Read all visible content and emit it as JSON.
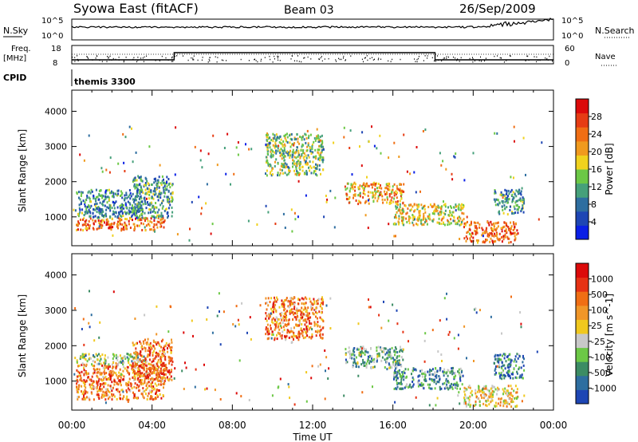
{
  "header": {
    "title": "Syowa East (fitACF)",
    "beam": "Beam 03",
    "date": "26/Sep/2009"
  },
  "status_panel": {
    "nsky_label": "N.Sky",
    "nsky_ticks": [
      "10^5",
      "10^0"
    ],
    "nsearch_label": "N.Search",
    "nsearch_ticks": [
      "10^5",
      "10^0"
    ],
    "freq_label_1": "Freq.",
    "freq_label_2": "[MHz]",
    "freq_ticks": [
      "18",
      "8"
    ],
    "nave_label": "Nave",
    "nave_ticks": [
      "60",
      "0"
    ],
    "cpid_label": "CPID",
    "cpid_value": "themis 3300"
  },
  "colors": {
    "power_scale": [
      "#0a1fe6",
      "#1e46b4",
      "#2e6ea0",
      "#46a07a",
      "#6cc846",
      "#f0d21e",
      "#f09a1e",
      "#f06e14",
      "#e63c14",
      "#dc0a0a"
    ],
    "velocity_scale": [
      "#1e46b4",
      "#2e6ea0",
      "#3c8c64",
      "#6cc846",
      "#c8c8c8",
      "#f0c81e",
      "#f09628",
      "#f06e14",
      "#e63214",
      "#dc0a0a"
    ]
  },
  "chart_data": [
    {
      "type": "heatmap",
      "name": "power",
      "xlabel": "",
      "ylabel": "Slant Range [km]",
      "xlim": [
        0,
        24
      ],
      "ylim": [
        180,
        4600
      ],
      "yticks": [
        "1000",
        "2000",
        "3000",
        "4000"
      ],
      "xticks": [
        "00:00",
        "04:00",
        "08:00",
        "12:00",
        "16:00",
        "20:00",
        "00:00"
      ],
      "colorbar_label": "Power [dB]",
      "colorbar_ticks": [
        "28",
        "24",
        "20",
        "16",
        "12",
        "8",
        "4"
      ],
      "colorbar_range": [
        0,
        30
      ],
      "regions": [
        {
          "t": [
            0.2,
            4.6
          ],
          "r": [
            650,
            1000
          ],
          "level": 0.75
        },
        {
          "t": [
            0.2,
            3.5
          ],
          "r": [
            1000,
            1800
          ],
          "level": 0.3
        },
        {
          "t": [
            3.0,
            5.0
          ],
          "r": [
            1000,
            2200
          ],
          "level": 0.35
        },
        {
          "t": [
            9.6,
            12.5
          ],
          "r": [
            2200,
            3400
          ],
          "level": 0.45
        },
        {
          "t": [
            13.6,
            16.5
          ],
          "r": [
            1400,
            2000
          ],
          "level": 0.65
        },
        {
          "t": [
            16.0,
            19.5
          ],
          "r": [
            800,
            1400
          ],
          "level": 0.55
        },
        {
          "t": [
            19.5,
            22.2
          ],
          "r": [
            300,
            900
          ],
          "level": 0.8
        },
        {
          "t": [
            21.0,
            22.5
          ],
          "r": [
            1100,
            1800
          ],
          "level": 0.35
        }
      ]
    },
    {
      "type": "heatmap",
      "name": "velocity",
      "xlabel": "Time UT",
      "ylabel": "Slant Range [km]",
      "xlim": [
        0,
        24
      ],
      "ylim": [
        180,
        4600
      ],
      "yticks": [
        "1000",
        "2000",
        "3000",
        "4000"
      ],
      "xticks": [
        "00:00",
        "04:00",
        "08:00",
        "12:00",
        "16:00",
        "20:00",
        "00:00"
      ],
      "colorbar_label": "Velocity [m s^-1]",
      "colorbar_ticks": [
        "1000",
        "500",
        "100",
        "25",
        "-25",
        "-100",
        "-500",
        "-1000"
      ],
      "colorbar_range": [
        -1200,
        1200
      ],
      "regions": [
        {
          "t": [
            0.2,
            4.6
          ],
          "r": [
            500,
            1500
          ],
          "level": 0.7
        },
        {
          "t": [
            0.2,
            3.6
          ],
          "r": [
            1500,
            1800
          ],
          "level": 0.4
        },
        {
          "t": [
            3.0,
            5.0
          ],
          "r": [
            1000,
            2200
          ],
          "level": 0.75
        },
        {
          "t": [
            9.6,
            12.5
          ],
          "r": [
            2200,
            3400
          ],
          "level": 0.7
        },
        {
          "t": [
            13.6,
            16.5
          ],
          "r": [
            1400,
            2000
          ],
          "level": 0.3
        },
        {
          "t": [
            16.0,
            19.5
          ],
          "r": [
            800,
            1400
          ],
          "level": 0.25
        },
        {
          "t": [
            19.5,
            22.2
          ],
          "r": [
            300,
            900
          ],
          "level": 0.55
        },
        {
          "t": [
            21.0,
            22.5
          ],
          "r": [
            1100,
            1800
          ],
          "level": 0.2
        }
      ]
    }
  ]
}
